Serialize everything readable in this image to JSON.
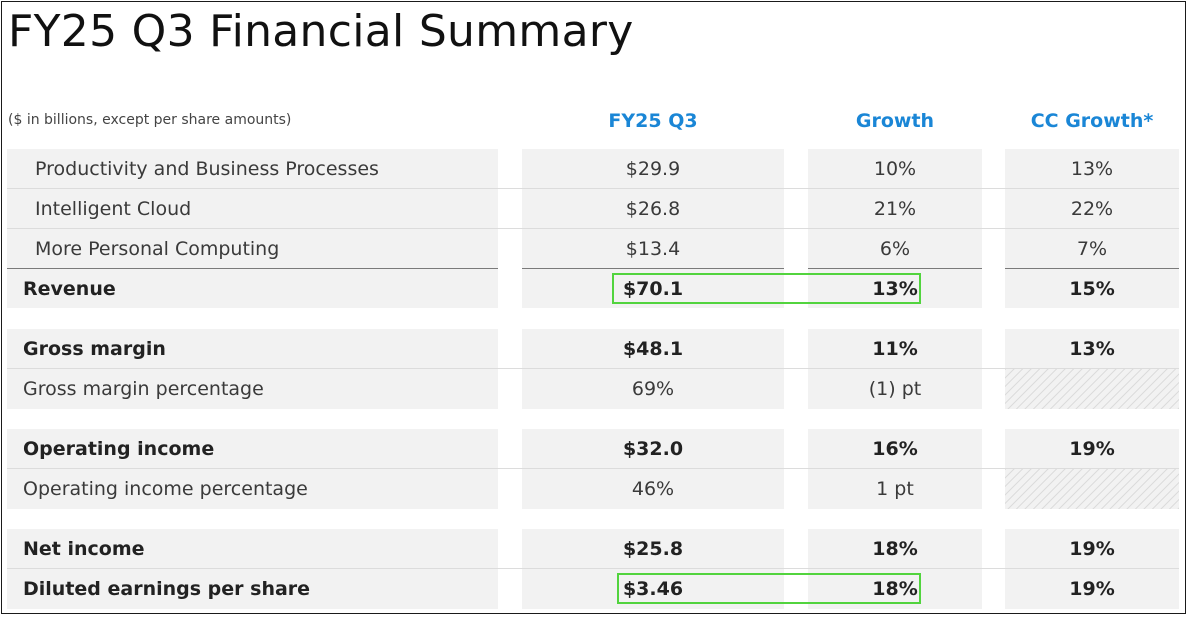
{
  "title": "FY25 Q3 Financial Summary",
  "subtitle": "($ in billions, except per share amounts)",
  "columns": [
    "FY25 Q3",
    "Growth",
    "CC Growth*"
  ],
  "colors": {
    "header_blue": "#1a86d6",
    "highlight_green": "#52d43e"
  },
  "rows": [
    {
      "label": "Productivity and Business Processes",
      "q3": "$29.9",
      "growth": "10%",
      "cc": "13%"
    },
    {
      "label": "Intelligent Cloud",
      "q3": "$26.8",
      "growth": "21%",
      "cc": "22%"
    },
    {
      "label": "More Personal Computing",
      "q3": "$13.4",
      "growth": "6%",
      "cc": "7%"
    },
    {
      "label": "Revenue",
      "q3": "$70.1",
      "growth": "13%",
      "cc": "15%"
    },
    {
      "label": "Gross margin",
      "q3": "$48.1",
      "growth": "11%",
      "cc": "13%"
    },
    {
      "label": "Gross margin percentage",
      "q3": "69%",
      "growth": "(1) pt",
      "cc": ""
    },
    {
      "label": "Operating income",
      "q3": "$32.0",
      "growth": "16%",
      "cc": "19%"
    },
    {
      "label": "Operating income percentage",
      "q3": "46%",
      "growth": "1 pt",
      "cc": ""
    },
    {
      "label": "Net income",
      "q3": "$25.8",
      "growth": "18%",
      "cc": "19%"
    },
    {
      "label": "Diluted earnings per share",
      "q3": "$3.46",
      "growth": "18%",
      "cc": "19%"
    }
  ]
}
